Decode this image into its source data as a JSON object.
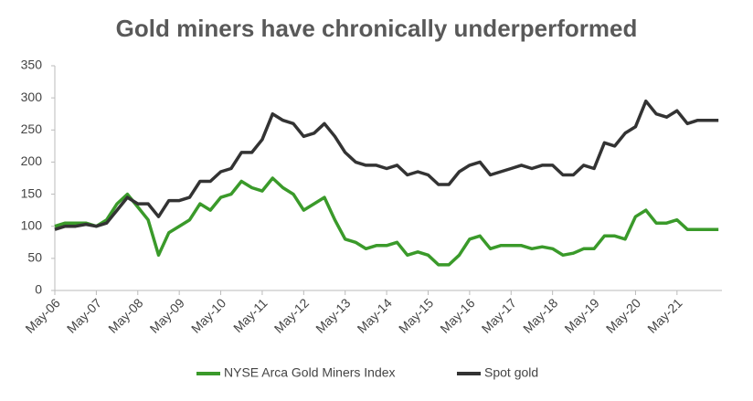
{
  "chart_data": {
    "type": "line",
    "title": "Gold miners have chronically underperformed",
    "x": [
      "2006-05",
      "2006-08",
      "2006-11",
      "2007-02",
      "2007-05",
      "2007-08",
      "2007-11",
      "2008-02",
      "2008-05",
      "2008-08",
      "2008-11",
      "2009-02",
      "2009-05",
      "2009-08",
      "2009-11",
      "2010-02",
      "2010-05",
      "2010-08",
      "2010-11",
      "2011-02",
      "2011-05",
      "2011-08",
      "2011-11",
      "2012-02",
      "2012-05",
      "2012-08",
      "2012-11",
      "2013-02",
      "2013-05",
      "2013-08",
      "2013-11",
      "2014-02",
      "2014-05",
      "2014-08",
      "2014-11",
      "2015-02",
      "2015-05",
      "2015-08",
      "2015-11",
      "2016-02",
      "2016-05",
      "2016-08",
      "2016-11",
      "2017-02",
      "2017-05",
      "2017-08",
      "2017-11",
      "2018-02",
      "2018-05",
      "2018-08",
      "2018-11",
      "2019-02",
      "2019-05",
      "2019-08",
      "2019-11",
      "2020-02",
      "2020-05",
      "2020-08",
      "2020-11",
      "2021-02",
      "2021-05",
      "2021-08",
      "2021-11",
      "2022-02",
      "2022-05"
    ],
    "series": [
      {
        "name": "NYSE Arca Gold Miners Index",
        "color": "#3a9a2a",
        "values": [
          100,
          105,
          105,
          105,
          100,
          110,
          135,
          150,
          130,
          110,
          55,
          90,
          100,
          110,
          135,
          125,
          145,
          150,
          170,
          160,
          155,
          175,
          160,
          150,
          125,
          135,
          145,
          110,
          80,
          75,
          65,
          70,
          70,
          75,
          55,
          60,
          55,
          40,
          40,
          55,
          80,
          85,
          65,
          70,
          70,
          70,
          65,
          68,
          65,
          55,
          58,
          65,
          65,
          85,
          85,
          80,
          115,
          125,
          105,
          105,
          110,
          95,
          95,
          95,
          95
        ]
      },
      {
        "name": "Spot gold",
        "color": "#333333",
        "values": [
          95,
          100,
          100,
          103,
          100,
          105,
          125,
          145,
          135,
          135,
          115,
          140,
          140,
          145,
          170,
          170,
          185,
          190,
          215,
          215,
          235,
          275,
          265,
          260,
          240,
          245,
          260,
          240,
          215,
          200,
          195,
          195,
          190,
          195,
          180,
          185,
          180,
          165,
          165,
          185,
          195,
          200,
          180,
          185,
          190,
          195,
          190,
          195,
          195,
          180,
          180,
          195,
          190,
          230,
          225,
          245,
          255,
          295,
          275,
          270,
          280,
          260,
          265,
          265,
          265
        ]
      }
    ],
    "xlim": [
      "2006-05",
      "2022-06"
    ],
    "xticks": [
      {
        "value": "2006-05",
        "label": "May-06"
      },
      {
        "value": "2007-05",
        "label": "May-07"
      },
      {
        "value": "2008-05",
        "label": "May-08"
      },
      {
        "value": "2009-05",
        "label": "May-09"
      },
      {
        "value": "2010-05",
        "label": "May-10"
      },
      {
        "value": "2011-05",
        "label": "May-11"
      },
      {
        "value": "2012-05",
        "label": "May-12"
      },
      {
        "value": "2013-05",
        "label": "May-13"
      },
      {
        "value": "2014-05",
        "label": "May-14"
      },
      {
        "value": "2015-05",
        "label": "May-15"
      },
      {
        "value": "2016-05",
        "label": "May-16"
      },
      {
        "value": "2017-05",
        "label": "May-17"
      },
      {
        "value": "2018-05",
        "label": "May-18"
      },
      {
        "value": "2019-05",
        "label": "May-19"
      },
      {
        "value": "2020-05",
        "label": "May-20"
      },
      {
        "value": "2021-05",
        "label": "May-21"
      }
    ],
    "ylim": [
      0,
      350
    ],
    "yticks": [
      0,
      50,
      100,
      150,
      200,
      250,
      300,
      350
    ],
    "grid": false,
    "legend": "bottom"
  }
}
